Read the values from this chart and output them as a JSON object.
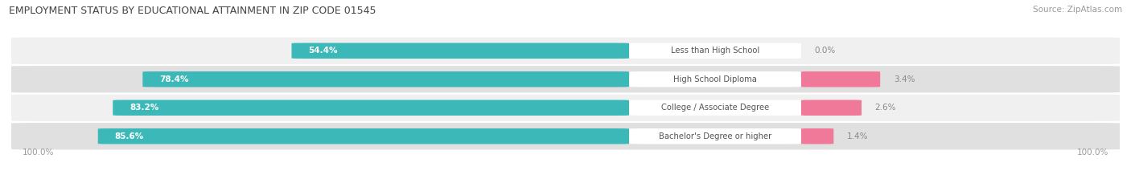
{
  "title": "EMPLOYMENT STATUS BY EDUCATIONAL ATTAINMENT IN ZIP CODE 01545",
  "source": "Source: ZipAtlas.com",
  "categories": [
    "Less than High School",
    "High School Diploma",
    "College / Associate Degree",
    "Bachelor's Degree or higher"
  ],
  "labor_force": [
    54.4,
    78.4,
    83.2,
    85.6
  ],
  "unemployed": [
    0.0,
    3.4,
    2.6,
    1.4
  ],
  "labor_force_color": "#3db8b8",
  "unemployed_color": "#f07898",
  "row_bg_light": "#f0f0f0",
  "row_bg_dark": "#e0e0e0",
  "label_text_color": "#555555",
  "value_left_color": "#ffffff",
  "value_right_color": "#888888",
  "axis_label_color": "#999999",
  "title_color": "#444444",
  "source_color": "#999999",
  "figsize": [
    14.06,
    2.33
  ],
  "dpi": 100,
  "max_lf": 100.0,
  "max_un": 10.0
}
